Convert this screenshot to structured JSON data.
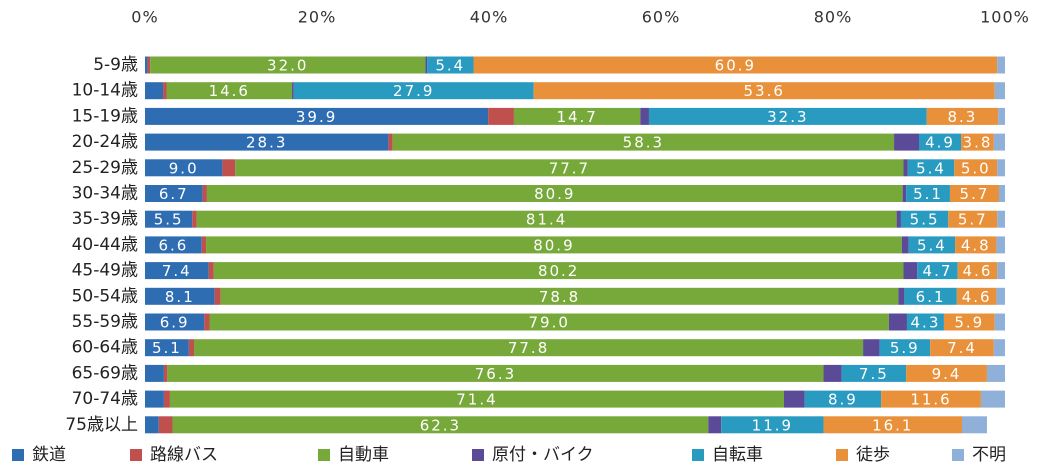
{
  "chart_data": {
    "type": "stacked_barh",
    "categories": [
      "5-9歳",
      "10-14歳",
      "15-19歳",
      "20-24歳",
      "25-29歳",
      "30-34歳",
      "35-39歳",
      "40-44歳",
      "45-49歳",
      "50-54歳",
      "55-59歳",
      "60-64歳",
      "65-69歳",
      "70-74歳",
      "75歳以上"
    ],
    "xlim": [
      0,
      100
    ],
    "xticks": [
      {
        "value": 0,
        "label": "0%"
      },
      {
        "value": 20,
        "label": "20%"
      },
      {
        "value": 40,
        "label": "40%"
      },
      {
        "value": 60,
        "label": "60%"
      },
      {
        "value": 80,
        "label": "80%"
      },
      {
        "value": 100,
        "label": "100%"
      }
    ],
    "grid": false,
    "legend": "bottom",
    "series": [
      {
        "name": "鉄道",
        "color": "#2f6db3",
        "values": [
          0.3,
          2.1,
          39.9,
          28.3,
          9.0,
          6.7,
          5.5,
          6.6,
          7.4,
          8.1,
          6.9,
          5.1,
          2.2,
          2.2,
          1.6
        ],
        "value_labels": [
          null,
          null,
          "39.9",
          "28.3",
          "9.0",
          "6.7",
          "5.5",
          "6.6",
          "7.4",
          "8.1",
          "6.9",
          "5.1",
          null,
          null,
          null
        ]
      },
      {
        "name": "路線バス",
        "color": "#c0504d",
        "values": [
          0.3,
          0.4,
          3.0,
          0.5,
          1.5,
          0.5,
          0.5,
          0.5,
          0.6,
          0.7,
          0.6,
          0.6,
          0.4,
          0.7,
          1.6
        ],
        "value_labels": [
          null,
          null,
          null,
          null,
          null,
          null,
          null,
          null,
          null,
          null,
          null,
          null,
          null,
          null,
          null
        ]
      },
      {
        "name": "自動車",
        "color": "#77a83a",
        "values": [
          32.0,
          14.6,
          14.7,
          58.3,
          77.7,
          80.9,
          81.4,
          80.9,
          80.2,
          78.8,
          79.0,
          77.8,
          76.3,
          71.4,
          62.3
        ],
        "value_labels": [
          "32.0",
          "14.6",
          "14.7",
          "58.3",
          "77.7",
          "80.9",
          "81.4",
          "80.9",
          "80.2",
          "78.8",
          "79.0",
          "77.8",
          "76.3",
          "71.4",
          "62.3"
        ]
      },
      {
        "name": "原付・バイク",
        "color": "#5a4a98",
        "values": [
          0.2,
          0.2,
          1.0,
          2.9,
          0.5,
          0.4,
          0.5,
          0.8,
          1.6,
          0.7,
          2.1,
          1.9,
          2.1,
          2.4,
          1.5
        ],
        "value_labels": [
          null,
          null,
          null,
          null,
          null,
          null,
          null,
          null,
          null,
          null,
          null,
          null,
          null,
          null,
          null
        ]
      },
      {
        "name": "自転車",
        "color": "#2a9bc0",
        "values": [
          5.4,
          27.9,
          32.3,
          4.9,
          5.4,
          5.1,
          5.5,
          5.4,
          4.7,
          6.1,
          4.3,
          5.9,
          7.5,
          8.9,
          11.9
        ],
        "value_labels": [
          "5.4",
          "27.9",
          "32.3",
          "4.9",
          "5.4",
          "5.1",
          "5.5",
          "5.4",
          "4.7",
          "6.1",
          "4.3",
          "5.9",
          "7.5",
          "8.9",
          "11.9"
        ]
      },
      {
        "name": "徒歩",
        "color": "#e8913a",
        "values": [
          60.9,
          53.6,
          8.3,
          3.8,
          5.0,
          5.7,
          5.7,
          4.8,
          4.6,
          4.6,
          5.9,
          7.4,
          9.4,
          11.6,
          16.1
        ],
        "value_labels": [
          "60.9",
          "53.6",
          "8.3",
          "3.8",
          "5.0",
          "5.7",
          "5.7",
          "4.8",
          "4.6",
          "4.6",
          "5.9",
          "7.4",
          "9.4",
          "11.6",
          "16.1"
        ]
      },
      {
        "name": "不明",
        "color": "#8fb0d8",
        "values": [
          0.9,
          1.2,
          0.8,
          1.3,
          0.9,
          0.7,
          0.9,
          1.0,
          0.9,
          1.0,
          1.2,
          1.3,
          2.1,
          2.8,
          2.9
        ],
        "value_labels": [
          null,
          null,
          null,
          null,
          null,
          null,
          null,
          null,
          null,
          null,
          null,
          null,
          null,
          null,
          null
        ]
      }
    ]
  }
}
